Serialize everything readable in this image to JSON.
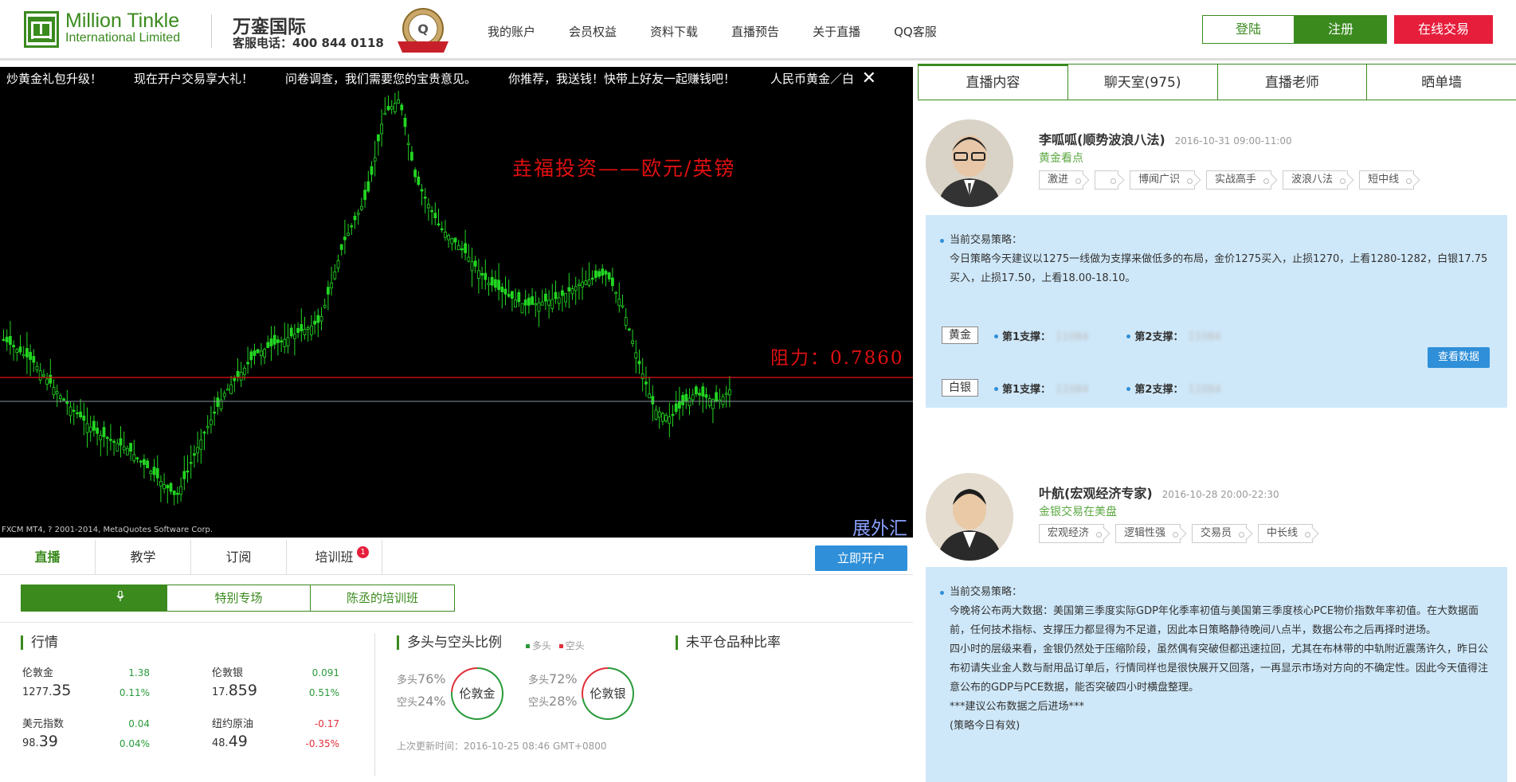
{
  "header": {
    "logo_en_line1": "Million Tinkle",
    "logo_en_line2": "International Limited",
    "brand_cn": "万銮国际",
    "service_tel": "客服电话：400 844 0118",
    "nav": [
      "我的账户",
      "会员权益",
      "资料下载",
      "直播预告",
      "关于直播",
      "QQ客服"
    ],
    "login_label": "登陆",
    "register_label": "注册",
    "trade_label": "在线交易"
  },
  "chart": {
    "ticker": [
      "炒黄金礼包升级！",
      "现在开户交易享大礼！",
      "问卷调查，我们需要您的宝贵意见。",
      "你推荐，我送钱！快带上好友一起赚钱吧！"
    ],
    "ticker_tail": "人民币黄金／白",
    "close_symbol": "✕",
    "title": "垚福投资——欧元/英镑",
    "resistance": "阻力：0.7860",
    "footer": "FXCM MT4, ? 2001-2014, MetaQuotes Software Corp.",
    "corner_text": "展外汇"
  },
  "tabs": {
    "items": [
      "直播",
      "教学",
      "订阅",
      "培训班"
    ],
    "badge": "1",
    "open_account": "立即开户"
  },
  "subtabs": [
    "直播大厅",
    "特别专场",
    "陈丞的培训班"
  ],
  "market": {
    "title": "行情",
    "items": [
      {
        "name": "伦敦金",
        "int": "1277.",
        "dec": "35",
        "change": "1.38",
        "pct": "0.11%",
        "dir": "up"
      },
      {
        "name": "伦敦银",
        "int": "17.",
        "dec": "859",
        "change": "0.091",
        "pct": "0.51%",
        "dir": "up"
      },
      {
        "name": "美元指数",
        "int": "98.",
        "dec": "39",
        "change": "0.04",
        "pct": "0.04%",
        "dir": "up"
      },
      {
        "name": "纽约原油",
        "int": "48.",
        "dec": "49",
        "change": "-0.17",
        "pct": "-0.35%",
        "dir": "dn"
      }
    ]
  },
  "ratio": {
    "title": "多头与空头比例",
    "legend_long": "多头",
    "legend_short": "空头",
    "gold": {
      "long_label": "多头",
      "long": "76%",
      "short_label": "空头",
      "short": "24%",
      "name": "伦敦金",
      "long_frac": 0.76
    },
    "silver": {
      "long_label": "多头",
      "long": "72%",
      "short_label": "空头",
      "short": "28%",
      "name": "伦敦银",
      "long_frac": 0.72
    },
    "updated": "上次更新时间：2016-10-25 08:46 GMT+0800"
  },
  "open_positions_title": "未平仓品种比率",
  "right": {
    "tabs": [
      "直播内容",
      "聊天室(975)",
      "直播老师",
      "晒单墙"
    ],
    "teachers": [
      {
        "name": "李呱呱(顺势波浪八法)",
        "date": "2016-10-31 09:00-11:00",
        "sub": "黄金看点",
        "tags": [
          "激进",
          "",
          "博闻广识",
          "实战高手",
          "波浪八法",
          "短中线"
        ],
        "strategy_head": "当前交易策略：",
        "strategy_body": "今日策略今天建议以1275一线做为支撑来做低多的布局，金价1275买入，止损1270，上看1280-1282，白银17.75买入，止损17.50，上看18.00-18.10。",
        "rows": [
          {
            "metal": "黄金",
            "s1": "第1支撑：",
            "v1": "11084",
            "s2": "第2支撑：",
            "v2": "11084"
          },
          {
            "metal": "白银",
            "s1": "第1支撑：",
            "v1": "11084",
            "s2": "第2支撑：",
            "v2": "11084"
          }
        ],
        "view_data": "查看数据"
      },
      {
        "name": "叶航(宏观经济专家)",
        "date": "2016-10-28 20:00-22:30",
        "sub": "金银交易在美盘",
        "tags": [
          "宏观经济",
          "逻辑性强",
          "交易员",
          "中长线"
        ],
        "strategy_head": "当前交易策略：",
        "strategy_body": "今晚将公布两大数据：美国第三季度实际GDP年化季率初值与美国第三季度核心PCE物价指数年率初值。在大数据面前，任何技术指标、支撑压力都显得为不足道，因此本日策略静待晚间八点半，数据公布之后再择时进场。",
        "strategy_body2": "四小时的层级来看，金银仍然处于压缩阶段，虽然偶有突破但都迅速拉回，尤其在布林带的中轨附近震荡许久，昨日公布初请失业金人数与耐用品订单后，行情同样也是很快展开又回落，一再显示市场对方向的不确定性。因此今天值得注意公布的GDP与PCE数据，能否突破四小时横盘整理。",
        "strategy_body3": "***建议公布数据之后进场***",
        "strategy_body4": "(策略今日有效)"
      }
    ]
  },
  "colors": {
    "brand_green": "#3a8a1e",
    "red": "#e61e3c",
    "blue": "#2f8fd8",
    "up": "#2a9a3a",
    "down": "#e0303a"
  }
}
